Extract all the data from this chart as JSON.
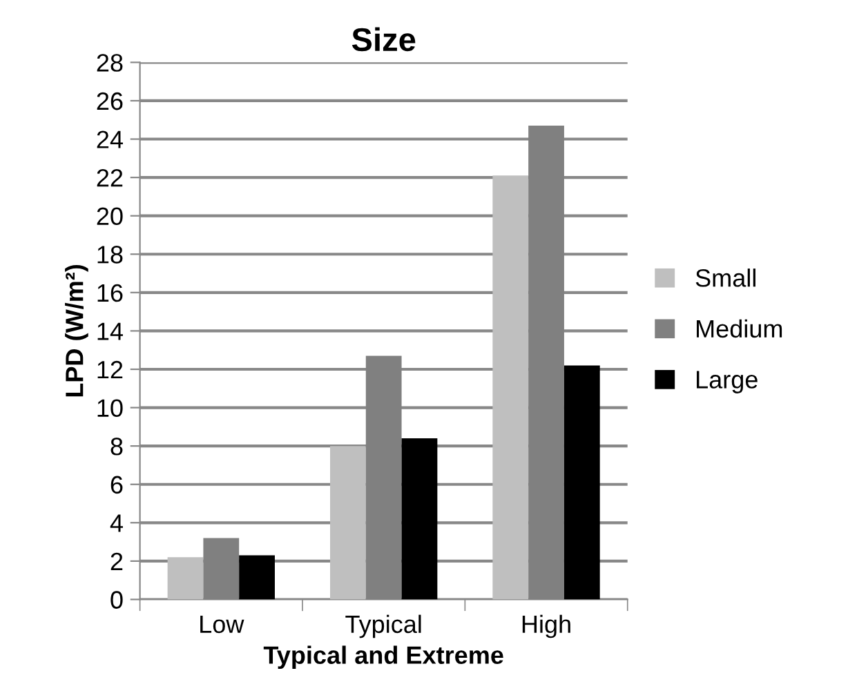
{
  "chart_data": {
    "type": "bar",
    "title": "Size",
    "xlabel": "Typical and Extreme",
    "ylabel": "LPD (W/m²)",
    "categories": [
      "Low",
      "Typical",
      "High"
    ],
    "series": [
      {
        "name": "Small",
        "color": "#bfbfbf",
        "values": [
          2.2,
          8.0,
          22.1
        ]
      },
      {
        "name": "Medium",
        "color": "#808080",
        "values": [
          3.2,
          12.7,
          24.7
        ]
      },
      {
        "name": "Large",
        "color": "#000000",
        "values": [
          2.3,
          8.4,
          12.2
        ]
      }
    ],
    "ylim": [
      0,
      28
    ],
    "yticks": [
      0,
      2,
      4,
      6,
      8,
      10,
      12,
      14,
      16,
      18,
      20,
      22,
      24,
      26,
      28
    ],
    "grid": "y",
    "legend": "right"
  }
}
